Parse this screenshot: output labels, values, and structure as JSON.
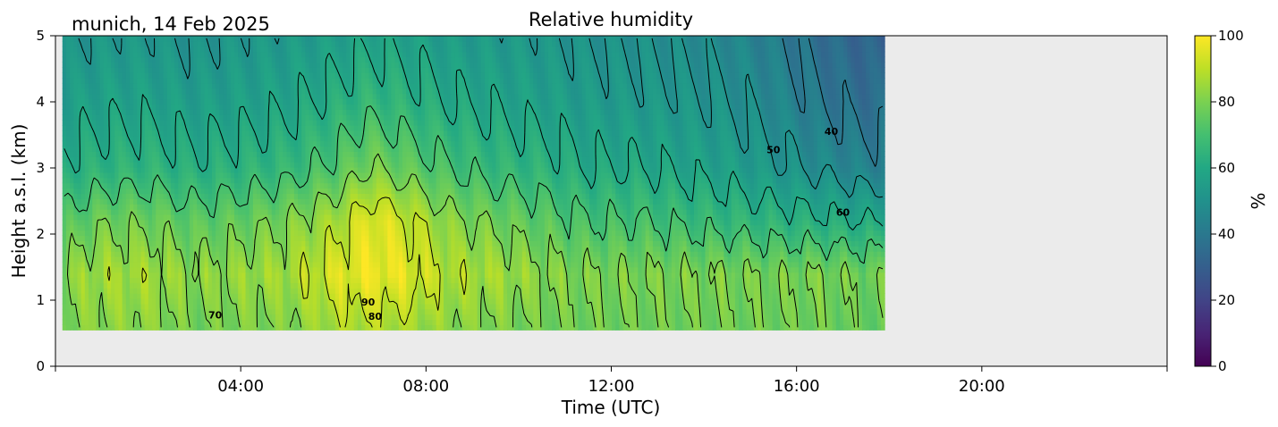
{
  "chart_data": {
    "type": "heatmap",
    "title": "Relative humidity",
    "location_label": "munich, 14 Feb 2025",
    "xlabel": "Time (UTC)",
    "ylabel": "Height a.s.l. (km)",
    "x_unit": "hours UTC",
    "xlim": [
      0,
      24
    ],
    "ylim": [
      0,
      5
    ],
    "x_ticks": [
      4,
      8,
      12,
      16,
      20
    ],
    "x_tick_labels": [
      "04:00",
      "08:00",
      "12:00",
      "16:00",
      "20:00"
    ],
    "y_ticks": [
      0,
      1,
      2,
      3,
      4,
      5
    ],
    "y_tick_labels": [
      "0",
      "1",
      "2",
      "3",
      "4",
      "5"
    ],
    "colorbar": {
      "label": "%",
      "range": [
        0,
        100
      ],
      "ticks": [
        0,
        20,
        40,
        60,
        80,
        100
      ],
      "tick_labels": [
        "0",
        "20",
        "40",
        "60",
        "80",
        "100"
      ],
      "colormap": "viridis"
    },
    "data_extent": {
      "x": [
        0.15,
        17.9
      ],
      "y": [
        0.55,
        5
      ]
    },
    "missing_color": "#ebebeb",
    "contour_levels": [
      40,
      50,
      60,
      70,
      80,
      90
    ],
    "contour_labels": [
      {
        "text": "40",
        "x": 16.75,
        "y": 3.5
      },
      {
        "text": "50",
        "x": 15.5,
        "y": 3.22
      },
      {
        "text": "60",
        "x": 17.0,
        "y": 2.28
      },
      {
        "text": "70",
        "x": 3.45,
        "y": 0.72
      },
      {
        "text": "80",
        "x": 6.9,
        "y": 0.7
      },
      {
        "text": "90",
        "x": 6.75,
        "y": 0.92
      }
    ],
    "humidity_profiles": [
      {
        "time": 0.2,
        "rh": [
          80,
          82,
          72,
          62,
          55,
          50
        ]
      },
      {
        "time": 1.0,
        "rh": [
          82,
          86,
          78,
          64,
          57,
          52
        ]
      },
      {
        "time": 2.0,
        "rh": [
          82,
          86,
          78,
          65,
          57,
          52
        ]
      },
      {
        "time": 3.0,
        "rh": [
          78,
          82,
          74,
          62,
          55,
          50
        ]
      },
      {
        "time": 4.0,
        "rh": [
          80,
          84,
          76,
          64,
          56,
          52
        ]
      },
      {
        "time": 5.0,
        "rh": [
          80,
          86,
          80,
          66,
          58,
          53
        ]
      },
      {
        "time": 6.0,
        "rh": [
          86,
          94,
          86,
          72,
          62,
          55
        ]
      },
      {
        "time": 6.8,
        "rh": [
          88,
          98,
          96,
          80,
          66,
          58
        ]
      },
      {
        "time": 7.5,
        "rh": [
          86,
          96,
          92,
          76,
          64,
          57
        ]
      },
      {
        "time": 8.5,
        "rh": [
          82,
          88,
          82,
          70,
          60,
          54
        ]
      },
      {
        "time": 9.5,
        "rh": [
          80,
          86,
          78,
          66,
          58,
          53
        ]
      },
      {
        "time": 10.5,
        "rh": [
          78,
          82,
          74,
          64,
          56,
          52
        ]
      },
      {
        "time": 11.5,
        "rh": [
          78,
          80,
          70,
          60,
          54,
          50
        ]
      },
      {
        "time": 12.5,
        "rh": [
          78,
          80,
          70,
          60,
          53,
          50
        ]
      },
      {
        "time": 13.5,
        "rh": [
          78,
          80,
          68,
          58,
          52,
          48
        ]
      },
      {
        "time": 14.5,
        "rh": [
          78,
          80,
          66,
          56,
          50,
          46
        ]
      },
      {
        "time": 15.5,
        "rh": [
          78,
          79,
          64,
          52,
          46,
          42
        ]
      },
      {
        "time": 16.5,
        "rh": [
          78,
          80,
          62,
          48,
          40,
          36
        ]
      },
      {
        "time": 17.5,
        "rh": [
          76,
          78,
          60,
          44,
          36,
          32
        ]
      },
      {
        "time": 17.9,
        "rh": [
          76,
          78,
          60,
          44,
          36,
          32
        ]
      }
    ],
    "profile_heights": [
      0.55,
      1.4,
      2.2,
      3.0,
      4.0,
      5.0
    ],
    "grid": false,
    "legend": "colorbar-right"
  }
}
